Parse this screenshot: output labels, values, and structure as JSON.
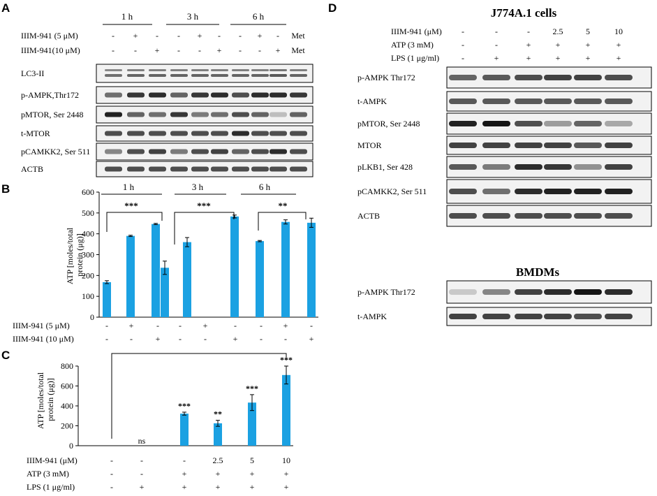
{
  "panels": {
    "A": {
      "letter": "A",
      "timepoints": [
        "1 h",
        "3 h",
        "6 h"
      ],
      "treatments": [
        {
          "label": "IIIM-941 (5 μM)",
          "marks": [
            "-",
            "+",
            "-",
            "-",
            "+",
            "-",
            "-",
            "+",
            "-",
            "Met"
          ]
        },
        {
          "label": "IIIM-941(10 μM)",
          "marks": [
            "-",
            "-",
            "+",
            "-",
            "-",
            "+",
            "-",
            "-",
            "+",
            "Met"
          ]
        }
      ],
      "blots": [
        {
          "label": "LC3-II",
          "bands": [
            0.55,
            0.6,
            0.6,
            0.6,
            0.6,
            0.6,
            0.6,
            0.6,
            0.65,
            0.6
          ]
        },
        {
          "label": "p-AMPK,Thr172",
          "bands": [
            0.55,
            0.8,
            0.85,
            0.6,
            0.8,
            0.85,
            0.7,
            0.85,
            0.85,
            0.8
          ]
        },
        {
          "label": "pMTOR, Ser 2448",
          "bands": [
            0.9,
            0.6,
            0.55,
            0.8,
            0.5,
            0.55,
            0.7,
            0.6,
            0.2,
            0.6
          ]
        },
        {
          "label": "t-MTOR",
          "bands": [
            0.7,
            0.7,
            0.7,
            0.7,
            0.7,
            0.7,
            0.85,
            0.7,
            0.7,
            0.7
          ]
        },
        {
          "label": "pCAMKK2, Ser 511",
          "bands": [
            0.45,
            0.7,
            0.75,
            0.5,
            0.7,
            0.75,
            0.6,
            0.7,
            0.85,
            0.7
          ]
        },
        {
          "label": "ACTB",
          "bands": [
            0.7,
            0.7,
            0.7,
            0.7,
            0.7,
            0.7,
            0.7,
            0.7,
            0.7,
            0.7
          ]
        }
      ]
    },
    "B": {
      "letter": "B",
      "row_labels": [
        "IIIM-941 (5 μM)",
        "IIIM-941 (10 μM)"
      ],
      "row_marks": [
        [
          "-",
          "+",
          "-",
          "-",
          "+",
          "-",
          "-",
          "+",
          "-"
        ],
        [
          "-",
          "-",
          "+",
          "-",
          "-",
          "+",
          "-",
          "-",
          "+"
        ]
      ],
      "group_labels": [
        "1 h",
        "3 h",
        "6 h"
      ],
      "significance": [
        "***",
        "***",
        "**"
      ]
    },
    "C": {
      "letter": "C",
      "row_labels": [
        "IIIM-941 (μM)",
        "ATP (3 mM)",
        "LPS (1 μg/ml)"
      ],
      "row_marks": [
        [
          "-",
          "-",
          "-",
          "2.5",
          "5",
          "10"
        ],
        [
          "-",
          "-",
          "+",
          "+",
          "+",
          "+"
        ],
        [
          "-",
          "+",
          "+",
          "+",
          "+",
          "+"
        ]
      ],
      "bar_annotations": [
        "",
        "ns",
        "***",
        "**",
        "***",
        "***"
      ]
    },
    "D": {
      "letter": "D",
      "title": "J774A.1 cells",
      "treatments": [
        {
          "label": "IIIM-941 (μM)",
          "marks": [
            "-",
            "-",
            "-",
            "2.5",
            "5",
            "10"
          ]
        },
        {
          "label": "ATP (3 mM)",
          "marks": [
            "-",
            "-",
            "+",
            "+",
            "+",
            "+"
          ]
        },
        {
          "label": "LPS (1 μg/ml)",
          "marks": [
            "-",
            "+",
            "+",
            "+",
            "+",
            "+"
          ]
        }
      ],
      "blots": [
        {
          "label": "p-AMPK Thr172",
          "bands": [
            0.6,
            0.65,
            0.7,
            0.75,
            0.75,
            0.7
          ]
        },
        {
          "label": "t-AMPK",
          "bands": [
            0.65,
            0.65,
            0.65,
            0.65,
            0.65,
            0.65
          ]
        },
        {
          "label": "pMTOR, Ser 2448",
          "bands": [
            0.9,
            0.95,
            0.7,
            0.35,
            0.6,
            0.3
          ]
        },
        {
          "label": "MTOR",
          "bands": [
            0.75,
            0.75,
            0.75,
            0.75,
            0.65,
            0.75
          ]
        },
        {
          "label": "pLKB1, Ser 428",
          "bands": [
            0.65,
            0.5,
            0.85,
            0.8,
            0.4,
            0.75
          ]
        },
        {
          "label": "pCAMKK2, Ser 511",
          "bands": [
            0.7,
            0.55,
            0.85,
            0.9,
            0.9,
            0.9
          ]
        },
        {
          "label": "ACTB",
          "bands": [
            0.7,
            0.7,
            0.7,
            0.7,
            0.7,
            0.7
          ]
        }
      ],
      "subtitle": "BMDMs",
      "blots2": [
        {
          "label": "p-AMPK Thr172",
          "bands": [
            0.15,
            0.45,
            0.75,
            0.85,
            0.95,
            0.85
          ]
        },
        {
          "label": "t-AMPK",
          "bands": [
            0.75,
            0.75,
            0.75,
            0.75,
            0.7,
            0.75
          ]
        }
      ]
    }
  },
  "chart_data": [
    {
      "type": "bar",
      "panel": "B",
      "ylabel": "ATP [moles/total protein (μg)]",
      "ylim": [
        0,
        600
      ],
      "yticks": [
        0,
        100,
        200,
        300,
        400,
        500,
        600
      ],
      "values": [
        168,
        390,
        447,
        237,
        360,
        483,
        365,
        457,
        453
      ],
      "errors": [
        7,
        3,
        3,
        32,
        22,
        7,
        3,
        10,
        22
      ],
      "color": "#1ba1e2"
    },
    {
      "type": "bar",
      "panel": "C",
      "ylabel": "ATP [moles/total protein (μg)]",
      "ylim": [
        0,
        800
      ],
      "yticks": [
        0,
        200,
        400,
        600,
        800
      ],
      "values": [
        0,
        0,
        322,
        225,
        433,
        710
      ],
      "errors": [
        0,
        0,
        15,
        30,
        80,
        90
      ],
      "color": "#1ba1e2"
    }
  ]
}
